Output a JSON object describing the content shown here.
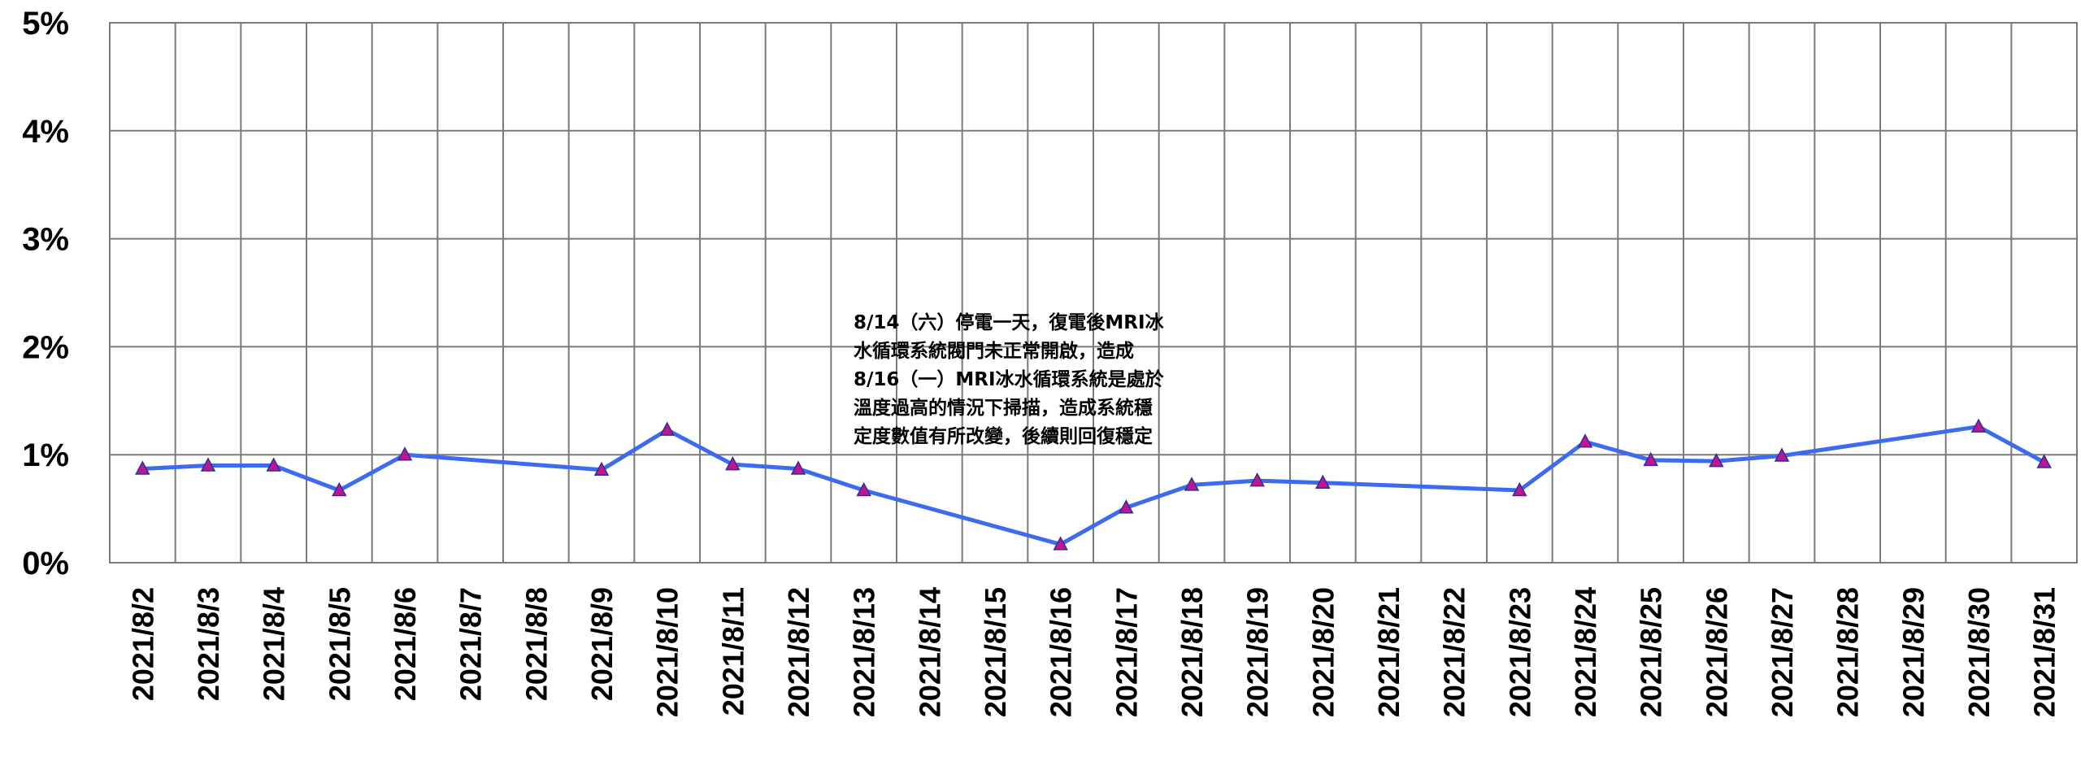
{
  "chart_data": {
    "type": "line",
    "title": "",
    "xlabel": "",
    "ylabel": "",
    "ylim": [
      0,
      5
    ],
    "y_unit": "%",
    "y_ticks": [
      0,
      1,
      2,
      3,
      4,
      5
    ],
    "y_tick_labels": [
      "0%",
      "1%",
      "2%",
      "3%",
      "4%",
      "5%"
    ],
    "grid": true,
    "legend": "none",
    "categories": [
      "2021/8/2",
      "2021/8/3",
      "2021/8/4",
      "2021/8/5",
      "2021/8/6",
      "2021/8/7",
      "2021/8/8",
      "2021/8/9",
      "2021/8/10",
      "2021/8/11",
      "2021/8/12",
      "2021/8/13",
      "2021/8/14",
      "2021/8/15",
      "2021/8/16",
      "2021/8/17",
      "2021/8/18",
      "2021/8/19",
      "2021/8/20",
      "2021/8/21",
      "2021/8/22",
      "2021/8/23",
      "2021/8/24",
      "2021/8/25",
      "2021/8/26",
      "2021/8/27",
      "2021/8/28",
      "2021/8/29",
      "2021/8/30",
      "2021/8/31"
    ],
    "series": [
      {
        "values": [
          0.87,
          0.9,
          0.9,
          0.67,
          1.0,
          null,
          null,
          0.86,
          1.23,
          0.91,
          0.87,
          0.67,
          null,
          null,
          0.17,
          0.51,
          0.72,
          0.76,
          0.74,
          null,
          null,
          0.67,
          1.12,
          0.95,
          0.94,
          0.99,
          null,
          null,
          1.26,
          0.93
        ],
        "line_color": "#3d6bf0",
        "marker": "triangle",
        "marker_fill": "#c0158f",
        "marker_stroke": "#2b2e9e"
      }
    ],
    "annotation": [
      "8/14（六）停電一天，復電後MRI冰",
      "水循環系統閥門未正常開啟，造成",
      "8/16（一）MRI冰水循環系統是處於",
      "溫度過高的情況下掃描，造成系統穩",
      "定度數值有所改變，後續則回復穩定"
    ]
  }
}
